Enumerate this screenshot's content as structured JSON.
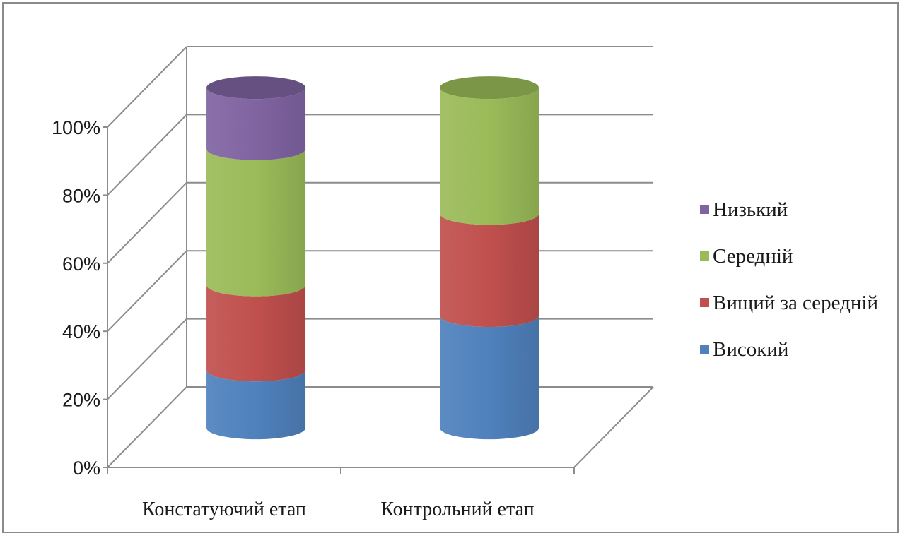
{
  "chart_data": {
    "type": "bar",
    "stacked": true,
    "percent_stacked": true,
    "three_d": true,
    "bar_shape": "cylinder",
    "categories": [
      "Констатуючий етап",
      "Контрольний етап"
    ],
    "series": [
      {
        "name": "Високий",
        "values": [
          17,
          33
        ],
        "color": "#4f81bd"
      },
      {
        "name": "Вищий за середній",
        "values": [
          25,
          30
        ],
        "color": "#c0504d"
      },
      {
        "name": "Середній",
        "values": [
          40,
          37
        ],
        "color": "#9bbb59"
      },
      {
        "name": "Низький",
        "values": [
          18,
          0
        ],
        "color": "#8064a2"
      }
    ],
    "title": "",
    "xlabel": "",
    "ylabel": "",
    "ylim": [
      0,
      100
    ],
    "y_ticks": [
      "0%",
      "20%",
      "40%",
      "60%",
      "80%",
      "100%"
    ],
    "grid": true,
    "legend_position": "right",
    "legend_order": [
      "Низький",
      "Середній",
      "Вищий за середній",
      "Високий"
    ]
  }
}
